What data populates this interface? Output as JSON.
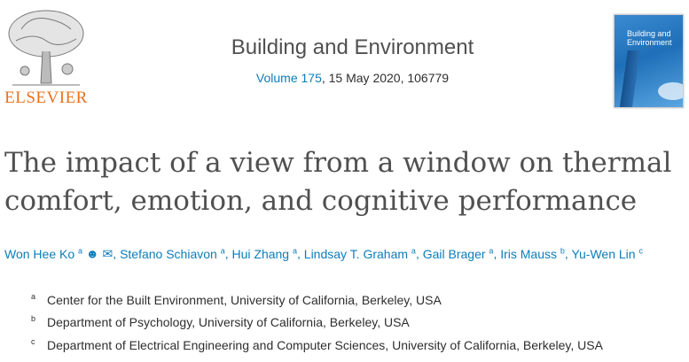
{
  "publisher": {
    "logo_text": "ELSEVIER"
  },
  "journal": {
    "title": "Building and Environment",
    "volume_link": "Volume 175",
    "date_article": ", 15 May 2020, 106779",
    "cover_text": "Building and Environment"
  },
  "article": {
    "title": "The impact of a view from a window on thermal comfort, emotion, and cognitive performance"
  },
  "authors": [
    {
      "name": "Won Hee Ko",
      "sup": "a"
    },
    {
      "name": "Stefano Schiavon",
      "sup": "a"
    },
    {
      "name": "Hui Zhang",
      "sup": "a"
    },
    {
      "name": "Lindsay T. Graham",
      "sup": "a"
    },
    {
      "name": "Gail Brager",
      "sup": "a"
    },
    {
      "name": "Iris Mauss",
      "sup": "b"
    },
    {
      "name": "Yu-Wen Lin",
      "sup": "c"
    }
  ],
  "affiliations": [
    {
      "label": "a",
      "text": "Center for the Built Environment, University of California, Berkeley, USA"
    },
    {
      "label": "b",
      "text": "Department of Psychology, University of California, Berkeley, USA"
    },
    {
      "label": "c",
      "text": "Department of Electrical Engineering and Computer Sciences, University of California, Berkeley, USA"
    }
  ],
  "colors": {
    "link": "#0c7dbb",
    "publisher": "#e9711c",
    "text": "#505050"
  }
}
